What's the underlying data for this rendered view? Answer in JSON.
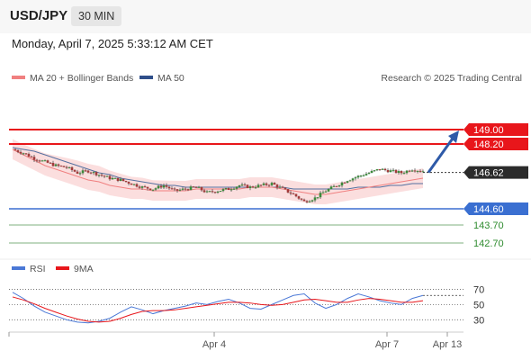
{
  "header": {
    "symbol": "USD/JPY",
    "timeframe": "30 MIN",
    "datetime": "Monday, April 7, 2025 5:33:12 AM CET"
  },
  "legend": {
    "ma20": "MA 20 + Bollinger Bands",
    "ma50": "MA 50",
    "credit": "Research © 2025 Trading Central"
  },
  "rsi_legend": {
    "rsi": "RSI",
    "ma9": "9MA"
  },
  "colors": {
    "resistance": "#e8161b",
    "support": "#3a6fd1",
    "target": "#2e8b2e",
    "ma20": "#f08080",
    "ma50": "#5470a0",
    "bands": "#f9d3d3",
    "rsi": "#4a78d6",
    "rsi_ma": "#e8161b",
    "arrow": "#2e5aa8"
  },
  "chart_data": {
    "type": "candlestick",
    "price_range": [
      142.2,
      150.2
    ],
    "current_price": {
      "value": 146.62,
      "label": "146.62"
    },
    "levels": [
      {
        "value": 149.0,
        "label": "149.00",
        "kind": "resistance"
      },
      {
        "value": 148.2,
        "label": "148.20",
        "kind": "resistance"
      },
      {
        "value": 144.6,
        "label": "144.60",
        "kind": "support"
      },
      {
        "value": 143.7,
        "label": "143.70",
        "kind": "target"
      },
      {
        "value": 142.7,
        "label": "142.70",
        "kind": "target"
      }
    ],
    "x_ticks": [
      "Apr 4",
      "Apr 7",
      "Apr 13"
    ],
    "close_series": [
      147.9,
      147.7,
      147.4,
      147.2,
      147.0,
      146.9,
      146.6,
      146.7,
      146.5,
      146.3,
      146.2,
      146.0,
      145.8,
      145.7,
      145.9,
      145.6,
      145.7,
      145.8,
      145.5,
      145.6,
      145.7,
      145.9,
      145.8,
      145.9,
      146.0,
      145.7,
      145.4,
      145.0,
      145.2,
      145.6,
      145.9,
      146.2,
      146.4,
      146.6,
      146.8,
      146.7,
      146.6,
      146.8,
      146.7
    ],
    "ma20_series": [
      147.9,
      147.6,
      147.3,
      147.0,
      146.8,
      146.6,
      146.4,
      146.2,
      146.1,
      145.9,
      145.8,
      145.7,
      145.7,
      145.6,
      145.6,
      145.6,
      145.6,
      145.7,
      145.7,
      145.7,
      145.7,
      145.7,
      145.8,
      145.8,
      145.8,
      145.7,
      145.6,
      145.5,
      145.4,
      145.4,
      145.5,
      145.6,
      145.7,
      145.8,
      145.9,
      146.0,
      146.1,
      146.2,
      146.3
    ],
    "ma50_series": [
      148.0,
      147.9,
      147.8,
      147.6,
      147.4,
      147.2,
      147.0,
      146.8,
      146.6,
      146.5,
      146.3,
      146.2,
      146.1,
      146.0,
      145.9,
      145.9,
      145.8,
      145.8,
      145.8,
      145.8,
      145.8,
      145.8,
      145.8,
      145.8,
      145.8,
      145.8,
      145.7,
      145.7,
      145.7,
      145.7,
      145.7,
      145.7,
      145.8,
      145.8,
      145.8,
      145.9,
      145.9,
      146.0,
      146.0
    ],
    "rsi": {
      "levels": [
        30,
        50,
        70
      ],
      "range": [
        15,
        80
      ],
      "series": [
        66,
        58,
        48,
        40,
        35,
        30,
        27,
        26,
        28,
        32,
        40,
        47,
        43,
        38,
        42,
        45,
        48,
        52,
        50,
        54,
        57,
        52,
        45,
        44,
        50,
        56,
        62,
        64,
        52,
        45,
        50,
        58,
        64,
        60,
        55,
        52,
        50,
        58,
        62
      ],
      "ma": [
        60,
        56,
        51,
        45,
        40,
        35,
        31,
        28,
        27,
        28,
        32,
        37,
        41,
        42,
        42,
        43,
        45,
        47,
        49,
        51,
        53,
        53,
        52,
        50,
        49,
        50,
        53,
        56,
        57,
        55,
        53,
        53,
        56,
        58,
        57,
        55,
        53,
        53,
        55
      ]
    }
  }
}
